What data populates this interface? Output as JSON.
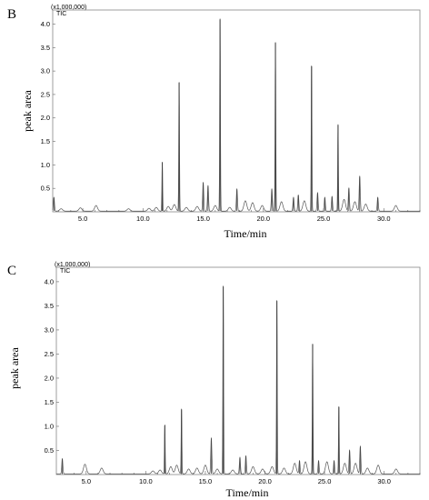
{
  "chart_data": [
    {
      "type": "line",
      "panel_label": "B",
      "scale_note": "(x1,000,000)",
      "trace_label": "TIC",
      "xlabel": "Time/min",
      "ylabel": "peak area",
      "xlim": [
        2.5,
        33.0
      ],
      "ylim": [
        0,
        4.3
      ],
      "x_ticks": [
        "5.0",
        "10.0",
        "15.0",
        "20.0",
        "25.0",
        "30.0"
      ],
      "y_ticks": [
        "0.5",
        "1.0",
        "1.5",
        "2.0",
        "2.5",
        "3.0",
        "3.5",
        "4.0"
      ],
      "series": [
        {
          "peaks": [
            {
              "x": 2.6,
              "y": 0.3
            },
            {
              "x": 3.2,
              "y": 0.05
            },
            {
              "x": 4.8,
              "y": 0.07
            },
            {
              "x": 6.1,
              "y": 0.12
            },
            {
              "x": 8.8,
              "y": 0.05
            },
            {
              "x": 10.5,
              "y": 0.06
            },
            {
              "x": 11.1,
              "y": 0.08
            },
            {
              "x": 11.6,
              "y": 1.05
            },
            {
              "x": 12.1,
              "y": 0.1
            },
            {
              "x": 12.6,
              "y": 0.14
            },
            {
              "x": 13.0,
              "y": 2.75
            },
            {
              "x": 13.6,
              "y": 0.08
            },
            {
              "x": 14.5,
              "y": 0.1
            },
            {
              "x": 15.0,
              "y": 0.62
            },
            {
              "x": 15.4,
              "y": 0.55
            },
            {
              "x": 16.0,
              "y": 0.12
            },
            {
              "x": 16.4,
              "y": 4.1
            },
            {
              "x": 17.2,
              "y": 0.08
            },
            {
              "x": 17.8,
              "y": 0.48
            },
            {
              "x": 18.5,
              "y": 0.22
            },
            {
              "x": 19.1,
              "y": 0.18
            },
            {
              "x": 19.9,
              "y": 0.12
            },
            {
              "x": 20.7,
              "y": 0.48
            },
            {
              "x": 21.0,
              "y": 3.6
            },
            {
              "x": 21.5,
              "y": 0.2
            },
            {
              "x": 22.5,
              "y": 0.3
            },
            {
              "x": 22.9,
              "y": 0.35
            },
            {
              "x": 23.4,
              "y": 0.22
            },
            {
              "x": 24.0,
              "y": 3.1
            },
            {
              "x": 24.5,
              "y": 0.4
            },
            {
              "x": 25.1,
              "y": 0.3
            },
            {
              "x": 25.7,
              "y": 0.32
            },
            {
              "x": 26.2,
              "y": 1.85
            },
            {
              "x": 26.7,
              "y": 0.25
            },
            {
              "x": 27.1,
              "y": 0.5
            },
            {
              "x": 27.6,
              "y": 0.2
            },
            {
              "x": 28.0,
              "y": 0.75
            },
            {
              "x": 28.5,
              "y": 0.15
            },
            {
              "x": 29.5,
              "y": 0.3
            },
            {
              "x": 31.0,
              "y": 0.12
            }
          ]
        }
      ]
    },
    {
      "type": "line",
      "panel_label": "C",
      "scale_note": "(x1,000,000)",
      "trace_label": "TIC",
      "xlabel": "Time/min",
      "ylabel": "peak area",
      "xlim": [
        2.5,
        33.0
      ],
      "ylim": [
        0,
        4.3
      ],
      "x_ticks": [
        "5.0",
        "10.0",
        "15.0",
        "20.0",
        "25.0",
        "30.0"
      ],
      "y_ticks": [
        "0.5",
        "1.0",
        "1.5",
        "2.0",
        "2.5",
        "3.0",
        "3.5",
        "4.0"
      ],
      "series": [
        {
          "peaks": [
            {
              "x": 3.0,
              "y": 0.32
            },
            {
              "x": 4.9,
              "y": 0.2
            },
            {
              "x": 6.3,
              "y": 0.12
            },
            {
              "x": 10.6,
              "y": 0.06
            },
            {
              "x": 11.2,
              "y": 0.08
            },
            {
              "x": 11.6,
              "y": 1.02
            },
            {
              "x": 12.1,
              "y": 0.15
            },
            {
              "x": 12.6,
              "y": 0.18
            },
            {
              "x": 13.0,
              "y": 1.35
            },
            {
              "x": 13.6,
              "y": 0.1
            },
            {
              "x": 14.3,
              "y": 0.12
            },
            {
              "x": 15.0,
              "y": 0.18
            },
            {
              "x": 15.5,
              "y": 0.75
            },
            {
              "x": 16.0,
              "y": 0.1
            },
            {
              "x": 16.5,
              "y": 3.9
            },
            {
              "x": 17.3,
              "y": 0.08
            },
            {
              "x": 17.9,
              "y": 0.35
            },
            {
              "x": 18.4,
              "y": 0.38
            },
            {
              "x": 19.0,
              "y": 0.15
            },
            {
              "x": 19.8,
              "y": 0.1
            },
            {
              "x": 20.6,
              "y": 0.15
            },
            {
              "x": 21.0,
              "y": 3.6
            },
            {
              "x": 21.6,
              "y": 0.12
            },
            {
              "x": 22.5,
              "y": 0.22
            },
            {
              "x": 22.9,
              "y": 0.28
            },
            {
              "x": 23.4,
              "y": 0.25
            },
            {
              "x": 24.0,
              "y": 2.7
            },
            {
              "x": 24.5,
              "y": 0.28
            },
            {
              "x": 25.2,
              "y": 0.25
            },
            {
              "x": 25.8,
              "y": 0.28
            },
            {
              "x": 26.2,
              "y": 1.4
            },
            {
              "x": 26.7,
              "y": 0.22
            },
            {
              "x": 27.1,
              "y": 0.5
            },
            {
              "x": 27.6,
              "y": 0.22
            },
            {
              "x": 28.0,
              "y": 0.58
            },
            {
              "x": 28.6,
              "y": 0.12
            },
            {
              "x": 29.5,
              "y": 0.18
            },
            {
              "x": 31.0,
              "y": 0.1
            }
          ]
        }
      ]
    }
  ]
}
